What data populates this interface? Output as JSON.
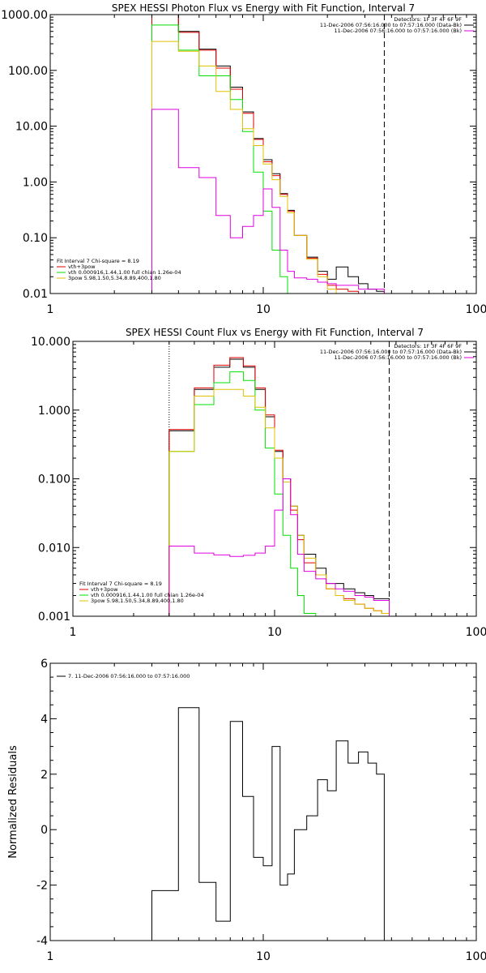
{
  "chart_data": [
    {
      "type": "line",
      "title": "SPEX HESSI Photon Flux vs Energy with Fit Function, Interval 7",
      "xscale": "log",
      "yscale": "log",
      "xlim": [
        1,
        100
      ],
      "ylim": [
        0.01,
        1000
      ],
      "xticks": [
        1,
        10,
        100
      ],
      "xtick_labels": [
        "1",
        "10",
        "100"
      ],
      "yticks": [
        0.01,
        0.1,
        1,
        10,
        100,
        1000
      ],
      "ytick_labels": [
        "0.01",
        "0.10",
        "1.00",
        "10.00",
        "100.00",
        "1000.00"
      ],
      "energy_range_markers": [
        3,
        37
      ],
      "legend_right": {
        "header": "Detectors: 1F 3F 4F 6F 9F",
        "entries": [
          {
            "label": "11-Dec-2006 07:56:16.000 to 07:57:16.000 (Data-Bk)",
            "color": "#000000"
          },
          {
            "label": "11-Dec-2006 07:56:16.000 to 07:57:16.000 (Bk)",
            "color": "#e000e0"
          }
        ]
      },
      "legend_left": {
        "header": "Fit Interval 7   Chi-square = 8.19",
        "entries": [
          {
            "label": "vth+3pow",
            "color": "#e00000"
          },
          {
            "label": "vth 0.000916,1.44,1.00   full chian 1.26e-04",
            "color": "#00e000"
          },
          {
            "label": "3pow 5.98,1.50,5.34,8.89,400,1.80",
            "color": "#e0c000"
          }
        ]
      },
      "edges": [
        3,
        4,
        5,
        6,
        7,
        8,
        9,
        10,
        11,
        12,
        13,
        14,
        16,
        18,
        20,
        22,
        25,
        28,
        31,
        34,
        37
      ],
      "series": [
        {
          "color": "#000000",
          "values": [
            1000,
            500,
            240,
            120,
            50,
            18,
            6,
            2.5,
            1.4,
            0.62,
            0.31,
            0.11,
            0.045,
            0.025,
            0.018,
            0.03,
            0.02,
            0.015,
            0.012,
            0.011
          ]
        },
        {
          "color": "#e00000",
          "values": [
            1000,
            480,
            230,
            110,
            46,
            17,
            5.8,
            2.3,
            1.3,
            0.6,
            0.3,
            0.11,
            0.043,
            0.022,
            0.014,
            0.012,
            0.011,
            0.01,
            0.01,
            0.01
          ]
        },
        {
          "color": "#00e000",
          "values": [
            650,
            230,
            80,
            80,
            30,
            8,
            1.5,
            0.3,
            0.06,
            0.02,
            0.01,
            0.01,
            0.01,
            0.01,
            0.01,
            0.01,
            0.01,
            0.01,
            0.01,
            0.01
          ]
        },
        {
          "color": "#e0c000",
          "values": [
            330,
            220,
            120,
            42,
            20,
            9,
            4.5,
            2.1,
            1.1,
            0.55,
            0.28,
            0.11,
            0.041,
            0.02,
            0.012,
            0.01,
            0.01,
            0.01,
            0.01,
            0.01
          ]
        },
        {
          "color": "#e000e0",
          "values": [
            20,
            1.8,
            1.2,
            0.25,
            0.1,
            0.16,
            0.25,
            0.75,
            0.35,
            0.06,
            0.025,
            0.019,
            0.018,
            0.016,
            0.015,
            0.014,
            0.014,
            0.012,
            0.012,
            0.012
          ]
        }
      ]
    },
    {
      "type": "line",
      "title": "SPEX HESSI Count Flux vs Energy with Fit Function, Interval 7",
      "xscale": "log",
      "yscale": "log",
      "xlim": [
        1,
        100
      ],
      "ylim": [
        0.001,
        10
      ],
      "xticks": [
        1,
        10,
        100
      ],
      "xtick_labels": [
        "1",
        "10",
        "100"
      ],
      "yticks": [
        0.001,
        0.01,
        0.1,
        1,
        10
      ],
      "ytick_labels": [
        "0.001",
        "0.010",
        "0.100",
        "1.000",
        "10.000"
      ],
      "energy_range_markers": [
        3,
        37
      ],
      "legend_right": {
        "header": "Detectors: 1F 3F 4F 6F 9F",
        "entries": [
          {
            "label": "11-Dec-2006 07:56:16.000 to 07:57:16.000 (Data-Bk)",
            "color": "#000000"
          },
          {
            "label": "11-Dec-2006 07:56:16.000 to 07:57:16.000 (Bk)",
            "color": "#e000e0"
          }
        ]
      },
      "legend_left": {
        "header": "Fit Interval 7   Chi-square = 8.19",
        "entries": [
          {
            "label": "vth+3pow",
            "color": "#e00000"
          },
          {
            "label": "vth 0.000916,1.44,1.00   full chian 1.26e-04",
            "color": "#00e000"
          },
          {
            "label": "3pow 5.98,1.50,5.34,8.89,400,1.80",
            "color": "#e0c000"
          }
        ]
      },
      "edges": [
        3,
        4,
        5,
        6,
        7,
        8,
        9,
        10,
        11,
        12,
        13,
        14,
        16,
        18,
        20,
        22,
        25,
        28,
        31,
        34,
        37
      ],
      "series": [
        {
          "color": "#000000",
          "values": [
            0.5,
            2.0,
            4.2,
            5.5,
            4.2,
            2.0,
            0.8,
            0.25,
            0.1,
            0.04,
            0.015,
            0.008,
            0.005,
            0.003,
            0.003,
            0.0025,
            0.0022,
            0.002,
            0.0018,
            0.0018
          ]
        },
        {
          "color": "#e00000",
          "values": [
            0.52,
            2.1,
            4.5,
            5.8,
            4.4,
            2.1,
            0.85,
            0.26,
            0.1,
            0.035,
            0.013,
            0.006,
            0.004,
            0.0025,
            0.002,
            0.0018,
            0.0015,
            0.0013,
            0.0012,
            0.0011
          ]
        },
        {
          "color": "#00e000",
          "values": [
            0.25,
            1.2,
            2.5,
            3.6,
            2.7,
            1.0,
            0.28,
            0.06,
            0.015,
            0.005,
            0.002,
            0.0011,
            0.001,
            0.001,
            0.001,
            0.001,
            0.001,
            0.001,
            0.001,
            0.001
          ]
        },
        {
          "color": "#e0c000",
          "values": [
            0.25,
            1.6,
            2.0,
            2.0,
            1.6,
            1.1,
            0.55,
            0.2,
            0.09,
            0.04,
            0.015,
            0.007,
            0.004,
            0.0025,
            0.002,
            0.0017,
            0.0015,
            0.0013,
            0.0012,
            0.0011
          ]
        },
        {
          "color": "#e000e0",
          "values": [
            0.0105,
            0.0083,
            0.0078,
            0.0074,
            0.0077,
            0.0083,
            0.0105,
            0.035,
            0.1,
            0.03,
            0.008,
            0.0045,
            0.0035,
            0.003,
            0.0025,
            0.0023,
            0.002,
            0.0019,
            0.0017,
            0.0017
          ]
        }
      ]
    },
    {
      "type": "line",
      "ylabel": "Normalized Residuals",
      "xscale": "log",
      "yscale": "linear",
      "xlim": [
        1,
        100
      ],
      "ylim": [
        -4,
        6
      ],
      "xticks": [
        1,
        10,
        100
      ],
      "xtick_labels": [
        "1",
        "10",
        "100"
      ],
      "yticks": [
        -4,
        -2,
        0,
        2,
        4,
        6
      ],
      "ytick_labels": [
        "-4",
        "-2",
        "0",
        "2",
        "4",
        "6"
      ],
      "legend_left": {
        "entries": [
          {
            "label": "7. 11-Dec-2006 07:56:16.000 to 07:57:16.000",
            "color": "#000000"
          }
        ]
      },
      "edges": [
        3,
        4,
        5,
        6,
        7,
        8,
        9,
        10,
        11,
        12,
        13,
        14,
        16,
        18,
        20,
        22,
        25,
        28,
        31,
        34,
        37
      ],
      "series": [
        {
          "color": "#000000",
          "values": [
            -2.2,
            4.4,
            -1.9,
            -3.3,
            3.9,
            1.2,
            -1.0,
            -1.3,
            3.0,
            -2.0,
            -1.6,
            0.0,
            0.5,
            1.8,
            1.4,
            3.2,
            2.4,
            2.8,
            2.4,
            2.0
          ]
        }
      ]
    }
  ]
}
